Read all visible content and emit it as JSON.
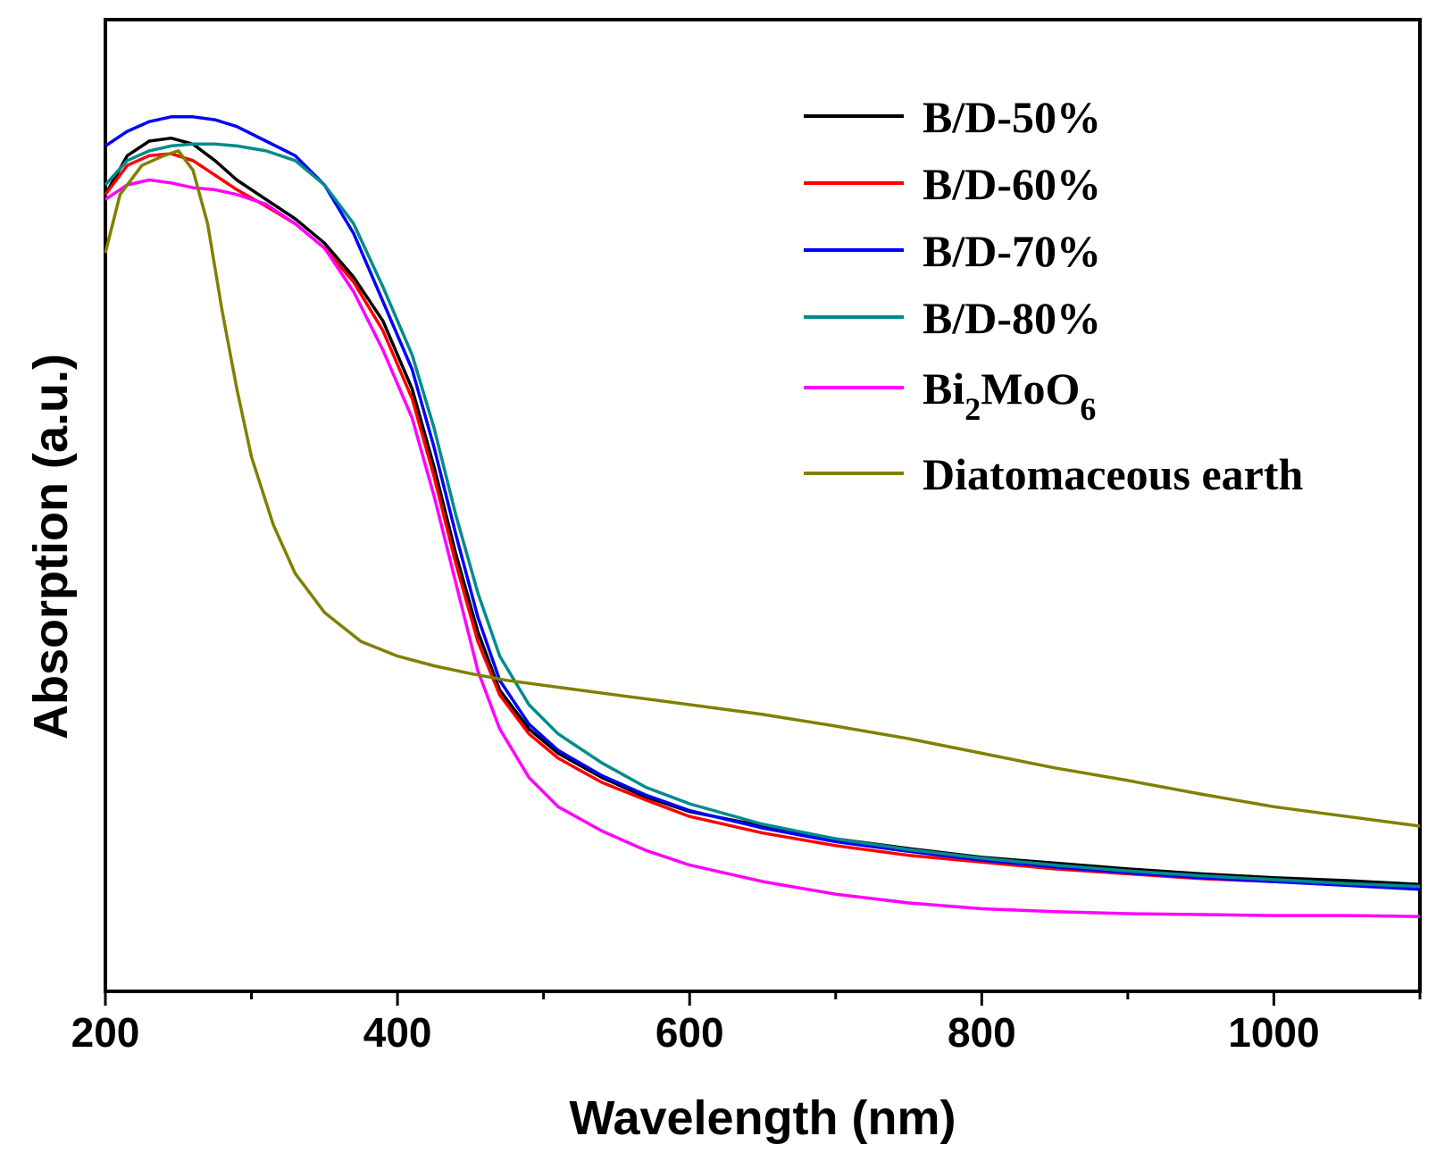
{
  "chart_data": {
    "type": "line",
    "title": "",
    "xlabel": "Wavelength (nm)",
    "ylabel": "Absorption (a.u.)",
    "xlim": [
      200,
      1100
    ],
    "ylim": [
      0,
      1.0
    ],
    "xticks": [
      200,
      400,
      600,
      800,
      1000
    ],
    "xtick_labels": [
      "200",
      "400",
      "600",
      "800",
      "1000"
    ],
    "yticks_visible": false,
    "grid": false,
    "legend_position": "top-right",
    "series": [
      {
        "name": "B/D-50%",
        "color": "#000000",
        "points": [
          [
            200,
            0.82
          ],
          [
            215,
            0.86
          ],
          [
            230,
            0.875
          ],
          [
            245,
            0.878
          ],
          [
            260,
            0.872
          ],
          [
            275,
            0.855
          ],
          [
            290,
            0.835
          ],
          [
            310,
            0.815
          ],
          [
            330,
            0.795
          ],
          [
            350,
            0.77
          ],
          [
            370,
            0.735
          ],
          [
            390,
            0.69
          ],
          [
            410,
            0.62
          ],
          [
            425,
            0.54
          ],
          [
            440,
            0.45
          ],
          [
            455,
            0.37
          ],
          [
            470,
            0.31
          ],
          [
            490,
            0.27
          ],
          [
            510,
            0.245
          ],
          [
            540,
            0.22
          ],
          [
            570,
            0.2
          ],
          [
            600,
            0.185
          ],
          [
            650,
            0.17
          ],
          [
            700,
            0.157
          ],
          [
            750,
            0.147
          ],
          [
            800,
            0.138
          ],
          [
            850,
            0.132
          ],
          [
            900,
            0.126
          ],
          [
            950,
            0.121
          ],
          [
            1000,
            0.117
          ],
          [
            1050,
            0.114
          ],
          [
            1100,
            0.11
          ]
        ]
      },
      {
        "name": "B/D-60%",
        "color": "#ff0000",
        "points": [
          [
            200,
            0.82
          ],
          [
            215,
            0.85
          ],
          [
            230,
            0.86
          ],
          [
            245,
            0.862
          ],
          [
            260,
            0.855
          ],
          [
            275,
            0.84
          ],
          [
            290,
            0.825
          ],
          [
            310,
            0.808
          ],
          [
            330,
            0.79
          ],
          [
            350,
            0.765
          ],
          [
            370,
            0.73
          ],
          [
            390,
            0.68
          ],
          [
            410,
            0.61
          ],
          [
            425,
            0.53
          ],
          [
            440,
            0.44
          ],
          [
            455,
            0.36
          ],
          [
            470,
            0.305
          ],
          [
            490,
            0.265
          ],
          [
            510,
            0.24
          ],
          [
            540,
            0.215
          ],
          [
            570,
            0.197
          ],
          [
            600,
            0.18
          ],
          [
            650,
            0.163
          ],
          [
            700,
            0.15
          ],
          [
            750,
            0.14
          ],
          [
            800,
            0.133
          ],
          [
            850,
            0.126
          ],
          [
            900,
            0.121
          ],
          [
            950,
            0.116
          ],
          [
            1000,
            0.113
          ],
          [
            1050,
            0.11
          ],
          [
            1100,
            0.107
          ]
        ]
      },
      {
        "name": "B/D-70%",
        "color": "#0000ff",
        "points": [
          [
            200,
            0.87
          ],
          [
            215,
            0.885
          ],
          [
            230,
            0.895
          ],
          [
            245,
            0.9
          ],
          [
            260,
            0.9
          ],
          [
            275,
            0.897
          ],
          [
            290,
            0.89
          ],
          [
            310,
            0.875
          ],
          [
            330,
            0.86
          ],
          [
            350,
            0.83
          ],
          [
            370,
            0.78
          ],
          [
            390,
            0.71
          ],
          [
            410,
            0.64
          ],
          [
            425,
            0.56
          ],
          [
            440,
            0.47
          ],
          [
            455,
            0.385
          ],
          [
            470,
            0.32
          ],
          [
            490,
            0.275
          ],
          [
            510,
            0.248
          ],
          [
            540,
            0.222
          ],
          [
            570,
            0.202
          ],
          [
            600,
            0.186
          ],
          [
            650,
            0.168
          ],
          [
            700,
            0.154
          ],
          [
            750,
            0.144
          ],
          [
            800,
            0.135
          ],
          [
            850,
            0.128
          ],
          [
            900,
            0.122
          ],
          [
            950,
            0.117
          ],
          [
            1000,
            0.113
          ],
          [
            1050,
            0.109
          ],
          [
            1100,
            0.105
          ]
        ]
      },
      {
        "name": "B/D-80%",
        "color": "#008b8b",
        "points": [
          [
            200,
            0.83
          ],
          [
            215,
            0.855
          ],
          [
            230,
            0.865
          ],
          [
            245,
            0.87
          ],
          [
            260,
            0.872
          ],
          [
            275,
            0.872
          ],
          [
            290,
            0.87
          ],
          [
            310,
            0.865
          ],
          [
            330,
            0.855
          ],
          [
            350,
            0.83
          ],
          [
            370,
            0.79
          ],
          [
            390,
            0.725
          ],
          [
            410,
            0.655
          ],
          [
            425,
            0.58
          ],
          [
            440,
            0.49
          ],
          [
            455,
            0.41
          ],
          [
            470,
            0.345
          ],
          [
            490,
            0.295
          ],
          [
            510,
            0.265
          ],
          [
            540,
            0.235
          ],
          [
            570,
            0.21
          ],
          [
            600,
            0.193
          ],
          [
            650,
            0.172
          ],
          [
            700,
            0.157
          ],
          [
            750,
            0.146
          ],
          [
            800,
            0.137
          ],
          [
            850,
            0.13
          ],
          [
            900,
            0.124
          ],
          [
            950,
            0.119
          ],
          [
            1000,
            0.115
          ],
          [
            1050,
            0.111
          ],
          [
            1100,
            0.108
          ]
        ]
      },
      {
        "name": "Bi2MoO6",
        "color": "#ff00ff",
        "points": [
          [
            200,
            0.815
          ],
          [
            215,
            0.83
          ],
          [
            230,
            0.835
          ],
          [
            245,
            0.832
          ],
          [
            260,
            0.827
          ],
          [
            275,
            0.825
          ],
          [
            290,
            0.82
          ],
          [
            310,
            0.81
          ],
          [
            330,
            0.79
          ],
          [
            350,
            0.765
          ],
          [
            370,
            0.72
          ],
          [
            390,
            0.66
          ],
          [
            410,
            0.59
          ],
          [
            425,
            0.51
          ],
          [
            440,
            0.42
          ],
          [
            455,
            0.33
          ],
          [
            470,
            0.27
          ],
          [
            490,
            0.22
          ],
          [
            510,
            0.19
          ],
          [
            540,
            0.165
          ],
          [
            570,
            0.145
          ],
          [
            600,
            0.13
          ],
          [
            650,
            0.113
          ],
          [
            700,
            0.1
          ],
          [
            750,
            0.091
          ],
          [
            800,
            0.085
          ],
          [
            850,
            0.082
          ],
          [
            900,
            0.08
          ],
          [
            950,
            0.079
          ],
          [
            1000,
            0.078
          ],
          [
            1050,
            0.078
          ],
          [
            1100,
            0.077
          ]
        ]
      },
      {
        "name": "Diatomaceous earth",
        "color": "#808000",
        "points": [
          [
            200,
            0.76
          ],
          [
            210,
            0.82
          ],
          [
            225,
            0.85
          ],
          [
            240,
            0.86
          ],
          [
            250,
            0.865
          ],
          [
            260,
            0.845
          ],
          [
            270,
            0.79
          ],
          [
            280,
            0.7
          ],
          [
            290,
            0.62
          ],
          [
            300,
            0.55
          ],
          [
            315,
            0.48
          ],
          [
            330,
            0.43
          ],
          [
            350,
            0.39
          ],
          [
            375,
            0.36
          ],
          [
            400,
            0.345
          ],
          [
            425,
            0.335
          ],
          [
            450,
            0.327
          ],
          [
            475,
            0.32
          ],
          [
            500,
            0.315
          ],
          [
            550,
            0.305
          ],
          [
            600,
            0.295
          ],
          [
            650,
            0.285
          ],
          [
            700,
            0.273
          ],
          [
            750,
            0.26
          ],
          [
            800,
            0.245
          ],
          [
            850,
            0.23
          ],
          [
            900,
            0.217
          ],
          [
            950,
            0.203
          ],
          [
            1000,
            0.19
          ],
          [
            1050,
            0.18
          ],
          [
            1100,
            0.17
          ]
        ]
      }
    ]
  },
  "legend": {
    "items": [
      {
        "label": "B/D-50%",
        "color": "#000000"
      },
      {
        "label": "B/D-60%",
        "color": "#ff0000"
      },
      {
        "label": "B/D-70%",
        "color": "#0000ff"
      },
      {
        "label": "B/D-80%",
        "color": "#008b8b"
      },
      {
        "label_main": "Bi",
        "label_sub1": "2",
        "label_mid": "MoO",
        "label_sub2": "6",
        "color": "#ff00ff"
      },
      {
        "label": "Diatomaceous earth",
        "color": "#808000"
      }
    ]
  }
}
